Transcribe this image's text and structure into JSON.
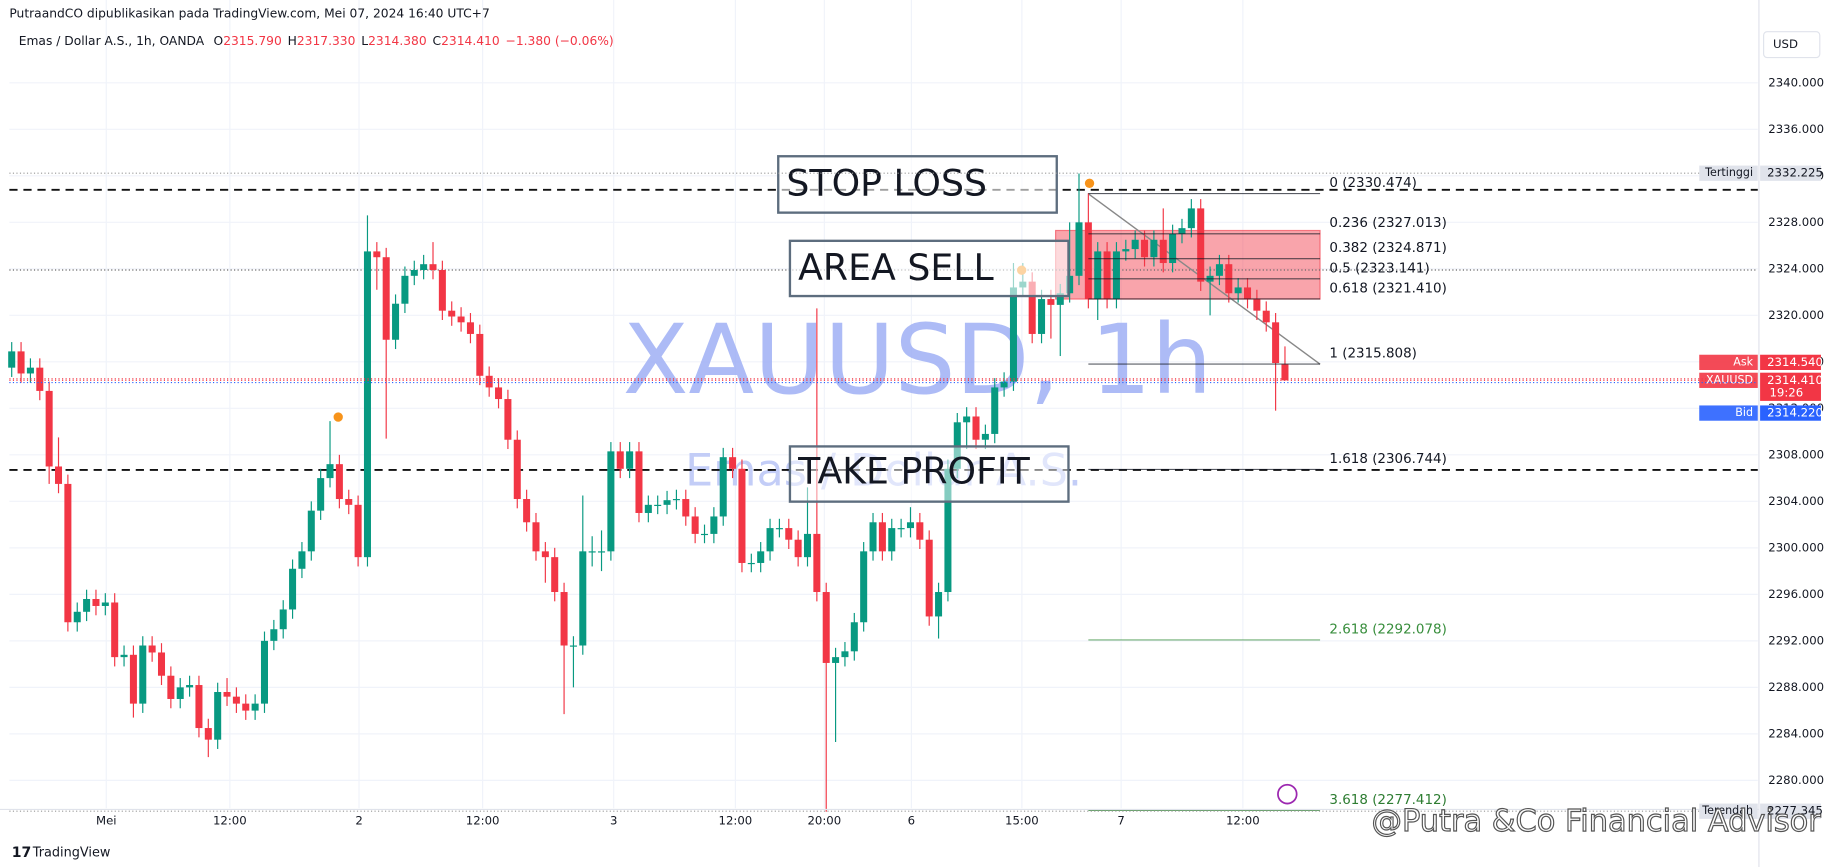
{
  "header": {
    "publisher": "PutraandCO dipublikasikan pada TradingView.com, Mei 07, 2024 16:40 UTC+7",
    "symbol": "Emas / Dollar A.S., 1h, OANDA",
    "ohlc": [
      {
        "label": "O",
        "value": "2315.790"
      },
      {
        "label": "H",
        "value": "2317.330"
      },
      {
        "label": "L",
        "value": "2314.380"
      },
      {
        "label": "C",
        "value": "2314.410"
      }
    ],
    "change": "−1.380 (−0.06%)",
    "currency": "USD"
  },
  "watermark": {
    "title": "XAUUSD, 1h",
    "subtitle": "Emas / Dollar A.S."
  },
  "annotations": {
    "stop_loss": "STOP LOSS",
    "area_sell": "AREA SELL",
    "take_profit": "TAKE PROFIT"
  },
  "footer": {
    "logo": "TradingView",
    "credit": "@Putra &Co Financial Advisor"
  },
  "chart_data": {
    "type": "candlestick",
    "up_color": "#089981",
    "down_color": "#f23645",
    "xlim": [
      -0.25,
      186.5
    ],
    "ylim": [
      2277.6,
      2344.7
    ],
    "xticks": [
      {
        "value": 10.1,
        "label": "Mei"
      },
      {
        "value": 23.3,
        "label": "12:00"
      },
      {
        "value": 37.1,
        "label": "2"
      },
      {
        "value": 50.3,
        "label": "12:00"
      },
      {
        "value": 64.3,
        "label": "3"
      },
      {
        "value": 77.3,
        "label": "12:00"
      },
      {
        "value": 86.8,
        "label": "20:00"
      },
      {
        "value": 96.1,
        "label": "6"
      },
      {
        "value": 107.9,
        "label": "15:00"
      },
      {
        "value": 118.5,
        "label": "7"
      },
      {
        "value": 131.5,
        "label": "12:00"
      }
    ],
    "yticks": [
      {
        "value": 2340,
        "label": "2340.000"
      },
      {
        "value": 2336,
        "label": "2336.000"
      },
      {
        "value": 2332,
        "label": "2332.000"
      },
      {
        "value": 2328,
        "label": "2328.000"
      },
      {
        "value": 2324,
        "label": "2324.000"
      },
      {
        "value": 2320,
        "label": "2320.000"
      },
      {
        "value": 2316,
        "label": "2316.000"
      },
      {
        "value": 2312,
        "label": "2312.000"
      },
      {
        "value": 2308,
        "label": "2308.000"
      },
      {
        "value": 2304,
        "label": "2304.000"
      },
      {
        "value": 2300,
        "label": "2300.000"
      },
      {
        "value": 2296,
        "label": "2296.000"
      },
      {
        "value": 2292,
        "label": "2292.000"
      },
      {
        "value": 2288,
        "label": "2288.000"
      },
      {
        "value": 2284,
        "label": "2284.000"
      },
      {
        "value": 2280,
        "label": "2280.000"
      }
    ],
    "grid": true,
    "candles": [
      [
        2315.5,
        2317.7,
        2314.7,
        2316.9
      ],
      [
        2316.9,
        2317.7,
        2314.2,
        2315.0
      ],
      [
        2315.0,
        2316.3,
        2314.2,
        2315.5
      ],
      [
        2315.5,
        2316.3,
        2312.7,
        2313.5
      ],
      [
        2313.5,
        2314.3,
        2305.5,
        2307.0
      ],
      [
        2307.0,
        2309.5,
        2304.7,
        2305.5
      ],
      [
        2305.5,
        2306.3,
        2292.8,
        2293.6
      ],
      [
        2293.6,
        2295.3,
        2292.8,
        2294.5
      ],
      [
        2294.5,
        2296.4,
        2293.7,
        2295.6
      ],
      [
        2295.6,
        2296.4,
        2294.2,
        2295.0
      ],
      [
        2295.0,
        2296.1,
        2294.2,
        2295.3
      ],
      [
        2295.3,
        2296.1,
        2289.8,
        2290.6
      ],
      [
        2290.6,
        2291.6,
        2289.8,
        2290.8
      ],
      [
        2290.8,
        2291.6,
        2285.4,
        2286.6
      ],
      [
        2286.6,
        2292.4,
        2285.8,
        2291.6
      ],
      [
        2291.6,
        2292.4,
        2290.2,
        2291.0
      ],
      [
        2291.0,
        2291.8,
        2288.2,
        2289.0
      ],
      [
        2289.0,
        2289.8,
        2286.2,
        2287.0
      ],
      [
        2287.0,
        2288.8,
        2286.2,
        2288.0
      ],
      [
        2288.0,
        2289.0,
        2287.2,
        2288.2
      ],
      [
        2288.2,
        2289.0,
        2283.7,
        2284.5
      ],
      [
        2284.5,
        2285.3,
        2282.0,
        2283.5
      ],
      [
        2283.5,
        2288.4,
        2282.7,
        2287.6
      ],
      [
        2287.6,
        2288.8,
        2286.4,
        2287.2
      ],
      [
        2287.2,
        2288.0,
        2285.8,
        2286.6
      ],
      [
        2286.6,
        2287.4,
        2285.2,
        2286.0
      ],
      [
        2286.0,
        2287.4,
        2285.2,
        2286.6
      ],
      [
        2286.6,
        2292.8,
        2285.8,
        2292.0
      ],
      [
        2292.0,
        2293.8,
        2291.2,
        2293.0
      ],
      [
        2293.0,
        2295.5,
        2292.2,
        2294.7
      ],
      [
        2294.7,
        2299.0,
        2293.9,
        2298.2
      ],
      [
        2298.2,
        2300.5,
        2297.4,
        2299.7
      ],
      [
        2299.7,
        2304.0,
        2298.9,
        2303.2
      ],
      [
        2303.2,
        2306.8,
        2302.4,
        2306.0
      ],
      [
        2306.0,
        2310.9,
        2305.2,
        2307.2
      ],
      [
        2307.2,
        2308.0,
        2303.4,
        2304.2
      ],
      [
        2304.2,
        2305.0,
        2302.9,
        2303.7
      ],
      [
        2303.7,
        2304.5,
        2298.4,
        2299.2
      ],
      [
        2299.2,
        2328.6,
        2298.4,
        2325.5
      ],
      [
        2325.5,
        2326.3,
        2322.2,
        2325.0
      ],
      [
        2325.0,
        2325.8,
        2309.4,
        2317.9
      ],
      [
        2317.9,
        2321.8,
        2317.1,
        2321.0
      ],
      [
        2321.0,
        2324.2,
        2320.2,
        2323.4
      ],
      [
        2323.4,
        2324.7,
        2322.6,
        2323.9
      ],
      [
        2323.9,
        2325.2,
        2323.1,
        2324.4
      ],
      [
        2324.4,
        2326.3,
        2323.1,
        2323.9
      ],
      [
        2323.9,
        2324.7,
        2319.6,
        2320.4
      ],
      [
        2320.4,
        2321.2,
        2319.1,
        2319.9
      ],
      [
        2319.9,
        2320.7,
        2318.6,
        2319.4
      ],
      [
        2319.4,
        2320.2,
        2317.6,
        2318.4
      ],
      [
        2318.4,
        2319.2,
        2314.0,
        2314.8
      ],
      [
        2314.8,
        2315.6,
        2313.0,
        2313.8
      ],
      [
        2313.8,
        2314.6,
        2312.0,
        2312.8
      ],
      [
        2312.8,
        2313.6,
        2308.5,
        2309.3
      ],
      [
        2309.3,
        2310.1,
        2303.4,
        2304.2
      ],
      [
        2304.2,
        2305.0,
        2301.4,
        2302.2
      ],
      [
        2302.2,
        2303.0,
        2298.9,
        2299.7
      ],
      [
        2299.7,
        2300.5,
        2297.0,
        2299.2
      ],
      [
        2299.2,
        2300.0,
        2295.4,
        2296.2
      ],
      [
        2296.2,
        2297.0,
        2285.7,
        2291.6
      ],
      [
        2291.6,
        2292.4,
        2288.0,
        2291.6
      ],
      [
        2291.6,
        2304.5,
        2290.8,
        2299.7
      ],
      [
        2299.7,
        2301.0,
        2298.4,
        2299.7
      ],
      [
        2299.7,
        2301.5,
        2298.0,
        2299.7
      ],
      [
        2299.7,
        2309.1,
        2298.9,
        2308.3
      ],
      [
        2308.3,
        2309.1,
        2306.0,
        2306.8
      ],
      [
        2306.8,
        2309.1,
        2306.0,
        2308.3
      ],
      [
        2308.3,
        2309.1,
        2302.2,
        2303.0
      ],
      [
        2303.0,
        2304.5,
        2302.2,
        2303.7
      ],
      [
        2303.7,
        2304.5,
        2302.9,
        2303.7
      ],
      [
        2303.7,
        2304.9,
        2302.9,
        2304.1
      ],
      [
        2304.1,
        2305.0,
        2303.3,
        2304.2
      ],
      [
        2304.2,
        2305.0,
        2301.9,
        2302.7
      ],
      [
        2302.7,
        2303.5,
        2300.4,
        2301.2
      ],
      [
        2301.2,
        2302.0,
        2300.4,
        2301.2
      ],
      [
        2301.2,
        2303.5,
        2300.4,
        2302.7
      ],
      [
        2302.7,
        2308.6,
        2301.9,
        2307.8
      ],
      [
        2307.8,
        2308.6,
        2306.0,
        2306.8
      ],
      [
        2306.8,
        2307.6,
        2297.9,
        2298.7
      ],
      [
        2298.7,
        2299.5,
        2297.9,
        2298.7
      ],
      [
        2298.7,
        2300.5,
        2297.9,
        2299.7
      ],
      [
        2299.7,
        2302.5,
        2298.9,
        2301.7
      ],
      [
        2301.7,
        2302.5,
        2300.9,
        2301.7
      ],
      [
        2301.7,
        2302.5,
        2299.9,
        2300.7
      ],
      [
        2300.7,
        2301.5,
        2298.4,
        2299.2
      ],
      [
        2299.2,
        2305.2,
        2298.4,
        2301.2
      ],
      [
        2301.2,
        2320.6,
        2295.4,
        2296.2
      ],
      [
        2296.2,
        2297.0,
        2277.3,
        2290.1
      ],
      [
        2290.1,
        2291.4,
        2283.3,
        2290.6
      ],
      [
        2290.6,
        2291.9,
        2289.8,
        2291.1
      ],
      [
        2291.1,
        2294.4,
        2290.3,
        2293.6
      ],
      [
        2293.6,
        2300.5,
        2292.8,
        2299.7
      ],
      [
        2299.7,
        2303.0,
        2298.9,
        2302.2
      ],
      [
        2302.2,
        2303.0,
        2298.9,
        2299.7
      ],
      [
        2299.7,
        2302.5,
        2298.9,
        2301.7
      ],
      [
        2301.7,
        2302.5,
        2300.9,
        2301.7
      ],
      [
        2301.7,
        2303.5,
        2300.9,
        2302.2
      ],
      [
        2302.2,
        2303.0,
        2299.9,
        2300.7
      ],
      [
        2300.7,
        2301.5,
        2293.3,
        2294.1
      ],
      [
        2294.1,
        2297.0,
        2292.2,
        2296.2
      ],
      [
        2296.2,
        2307.6,
        2295.4,
        2306.8
      ],
      [
        2306.8,
        2311.6,
        2306.0,
        2310.8
      ],
      [
        2310.8,
        2312.1,
        2308.5,
        2311.3
      ],
      [
        2311.3,
        2312.1,
        2308.5,
        2309.3
      ],
      [
        2309.3,
        2310.6,
        2308.5,
        2309.8
      ],
      [
        2309.8,
        2314.6,
        2309.0,
        2313.8
      ],
      [
        2313.8,
        2315.1,
        2313.0,
        2314.3
      ],
      [
        2314.3,
        2324.5,
        2313.5,
        2322.4
      ],
      [
        2322.4,
        2324.5,
        2321.6,
        2322.9
      ],
      [
        2322.9,
        2323.7,
        2317.6,
        2318.4
      ],
      [
        2318.4,
        2322.2,
        2317.6,
        2321.4
      ],
      [
        2321.4,
        2322.2,
        2318.0,
        2320.9
      ],
      [
        2320.9,
        2322.7,
        2316.5,
        2321.9
      ],
      [
        2321.9,
        2328.0,
        2321.1,
        2323.4
      ],
      [
        2323.4,
        2332.2,
        2322.6,
        2328.0
      ],
      [
        2328.0,
        2330.5,
        2320.6,
        2321.4
      ],
      [
        2321.4,
        2326.3,
        2319.6,
        2325.5
      ],
      [
        2325.5,
        2326.3,
        2320.6,
        2321.4
      ],
      [
        2321.4,
        2326.3,
        2320.6,
        2325.5
      ],
      [
        2325.5,
        2326.5,
        2324.7,
        2325.7
      ],
      [
        2325.7,
        2327.3,
        2324.9,
        2326.5
      ],
      [
        2326.5,
        2327.3,
        2324.2,
        2325.0
      ],
      [
        2325.0,
        2327.3,
        2324.2,
        2326.5
      ],
      [
        2326.5,
        2329.2,
        2323.7,
        2324.5
      ],
      [
        2324.5,
        2327.8,
        2323.7,
        2327.0
      ],
      [
        2327.0,
        2328.3,
        2326.2,
        2327.5
      ],
      [
        2327.5,
        2330.0,
        2326.7,
        2329.2
      ],
      [
        2329.2,
        2330.0,
        2322.1,
        2322.9
      ],
      [
        2322.9,
        2324.2,
        2320.0,
        2323.4
      ],
      [
        2323.4,
        2325.2,
        2322.6,
        2324.4
      ],
      [
        2324.4,
        2325.2,
        2321.1,
        2321.9
      ],
      [
        2321.9,
        2323.2,
        2321.1,
        2322.4
      ],
      [
        2322.4,
        2323.2,
        2320.6,
        2321.4
      ],
      [
        2321.4,
        2322.2,
        2319.6,
        2320.4
      ],
      [
        2320.4,
        2321.2,
        2318.6,
        2319.4
      ],
      [
        2319.4,
        2320.2,
        2311.8,
        2315.9
      ],
      [
        2315.79,
        2317.33,
        2314.38,
        2314.41
      ]
    ],
    "dashed_lines": [
      2330.8,
      2306.7
    ],
    "dotted_lines": [
      2323.9
    ],
    "sell_zone": [
      2321.4,
      2327.3
    ],
    "fib_levels": [
      {
        "value": 2330.474,
        "label": "0 (2330.474)",
        "color": "#131722"
      },
      {
        "value": 2327.013,
        "label": "0.236 (2327.013)",
        "color": "#131722"
      },
      {
        "value": 2324.871,
        "label": "0.382 (2324.871)",
        "color": "#131722"
      },
      {
        "value": 2323.141,
        "label": "0.5 (2323.141)",
        "color": "#131722"
      },
      {
        "value": 2321.41,
        "label": "0.618 (2321.410)",
        "color": "#131722"
      },
      {
        "value": 2315.808,
        "label": "1 (2315.808)",
        "color": "#131722"
      },
      {
        "value": 2306.744,
        "label": "1.618 (2306.744)",
        "color": "#131722"
      },
      {
        "value": 2292.078,
        "label": "2.618 (2292.078)",
        "color": "#388e3c"
      },
      {
        "value": 2277.412,
        "label": "3.618 (2277.412)",
        "color": "#2e7d32"
      }
    ],
    "price_tags": [
      {
        "name": "Tertinggi",
        "value": 2332.225,
        "label": "2332.225",
        "color": "#e0e3eb"
      },
      {
        "name": "Ask",
        "value": 2314.54,
        "label": "2314.540",
        "color": "#f23645"
      },
      {
        "name": "XAUUSD",
        "value": 2314.41,
        "label": "2314.410",
        "countdown": "19:26",
        "color": "#f23645"
      },
      {
        "name": "Bid",
        "value": 2314.22,
        "label": "2314.220",
        "color": "#2962ff"
      },
      {
        "name": "Terendah",
        "value": 2277.345,
        "label": "2277.345",
        "color": "#e0e3eb"
      }
    ]
  }
}
